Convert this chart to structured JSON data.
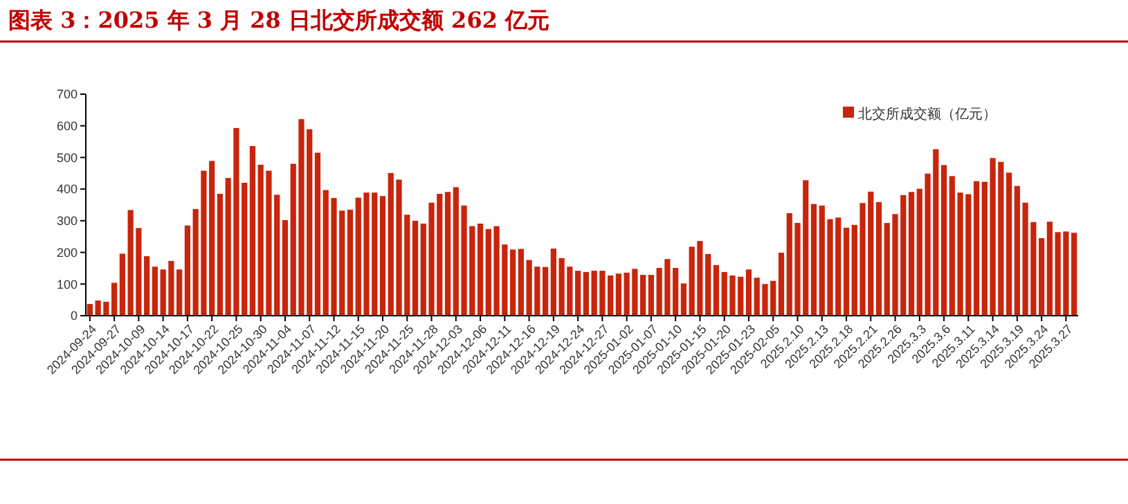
{
  "chart_data": {
    "type": "bar",
    "title": "图表 3：2025 年 3 月 28 日北交所成交额 262 亿元",
    "categories": [
      "2024-09-24",
      null,
      null,
      "2024-09-27",
      null,
      null,
      "2024-10-09",
      null,
      null,
      "2024-10-14",
      null,
      null,
      "2024-10-17",
      null,
      null,
      "2024-10-22",
      null,
      null,
      "2024-10-25",
      null,
      null,
      "2024-10-30",
      null,
      null,
      "2024-11-04",
      null,
      null,
      "2024-11-07",
      null,
      null,
      "2024-11-12",
      null,
      null,
      "2024-11-15",
      null,
      null,
      "2024-11-20",
      null,
      null,
      "2024-11-25",
      null,
      null,
      "2024-11-28",
      null,
      null,
      "2024-12-03",
      null,
      null,
      "2024-12-06",
      null,
      null,
      "2024-12-11",
      null,
      null,
      "2024-12-16",
      null,
      null,
      "2024-12-19",
      null,
      null,
      "2024-12-24",
      null,
      null,
      "2024-12-27",
      null,
      null,
      "2025-01-02",
      null,
      null,
      "2025-01-07",
      null,
      null,
      "2025-01-10",
      null,
      null,
      "2025-01-15",
      null,
      null,
      "2025-01-20",
      null,
      null,
      "2025-01-23",
      null,
      null,
      "2025-02-05",
      null,
      null,
      "2025.2.10",
      null,
      null,
      "2025.2.13",
      null,
      null,
      "2025.2.18",
      null,
      null,
      "2025.2.21",
      null,
      null,
      "2025.2.26",
      null,
      null,
      "2025.3.3",
      null,
      null,
      "2025.3.6",
      null,
      null,
      "2025.3.11",
      null,
      null,
      "2025.3.14",
      null,
      null,
      "2025.3.19",
      null,
      null,
      "2025.3.24",
      null,
      null,
      "2025.3.27",
      null
    ],
    "series": [
      {
        "name": "北交所成交额（亿元）",
        "color": "#c8250c",
        "values": [
          37,
          48,
          44,
          104,
          196,
          334,
          277,
          188,
          155,
          146,
          173,
          146,
          285,
          337,
          458,
          489,
          385,
          435,
          593,
          420,
          536,
          477,
          458,
          382,
          302,
          480,
          621,
          589,
          515,
          397,
          372,
          332,
          335,
          373,
          389,
          389,
          378,
          451,
          430,
          319,
          300,
          291,
          357,
          385,
          391,
          406,
          348,
          283,
          291,
          274,
          283,
          225,
          209,
          211,
          176,
          155,
          154,
          212,
          182,
          155,
          142,
          138,
          142,
          142,
          127,
          133,
          136,
          148,
          129,
          129,
          151,
          179,
          151,
          102,
          218,
          236,
          195,
          160,
          138,
          127,
          123,
          146,
          120,
          100,
          110,
          199,
          324,
          293,
          428,
          353,
          348,
          305,
          310,
          278,
          287,
          356,
          392,
          359,
          293,
          321,
          381,
          391,
          401,
          449,
          526,
          476,
          441,
          389,
          384,
          425,
          423,
          498,
          486,
          452,
          410,
          357,
          296,
          245,
          297,
          264,
          266,
          262
        ]
      }
    ],
    "ylim": [
      0,
      700
    ],
    "yticks": [
      0,
      100,
      200,
      300,
      400,
      500,
      600,
      700
    ],
    "legend": "top right"
  }
}
